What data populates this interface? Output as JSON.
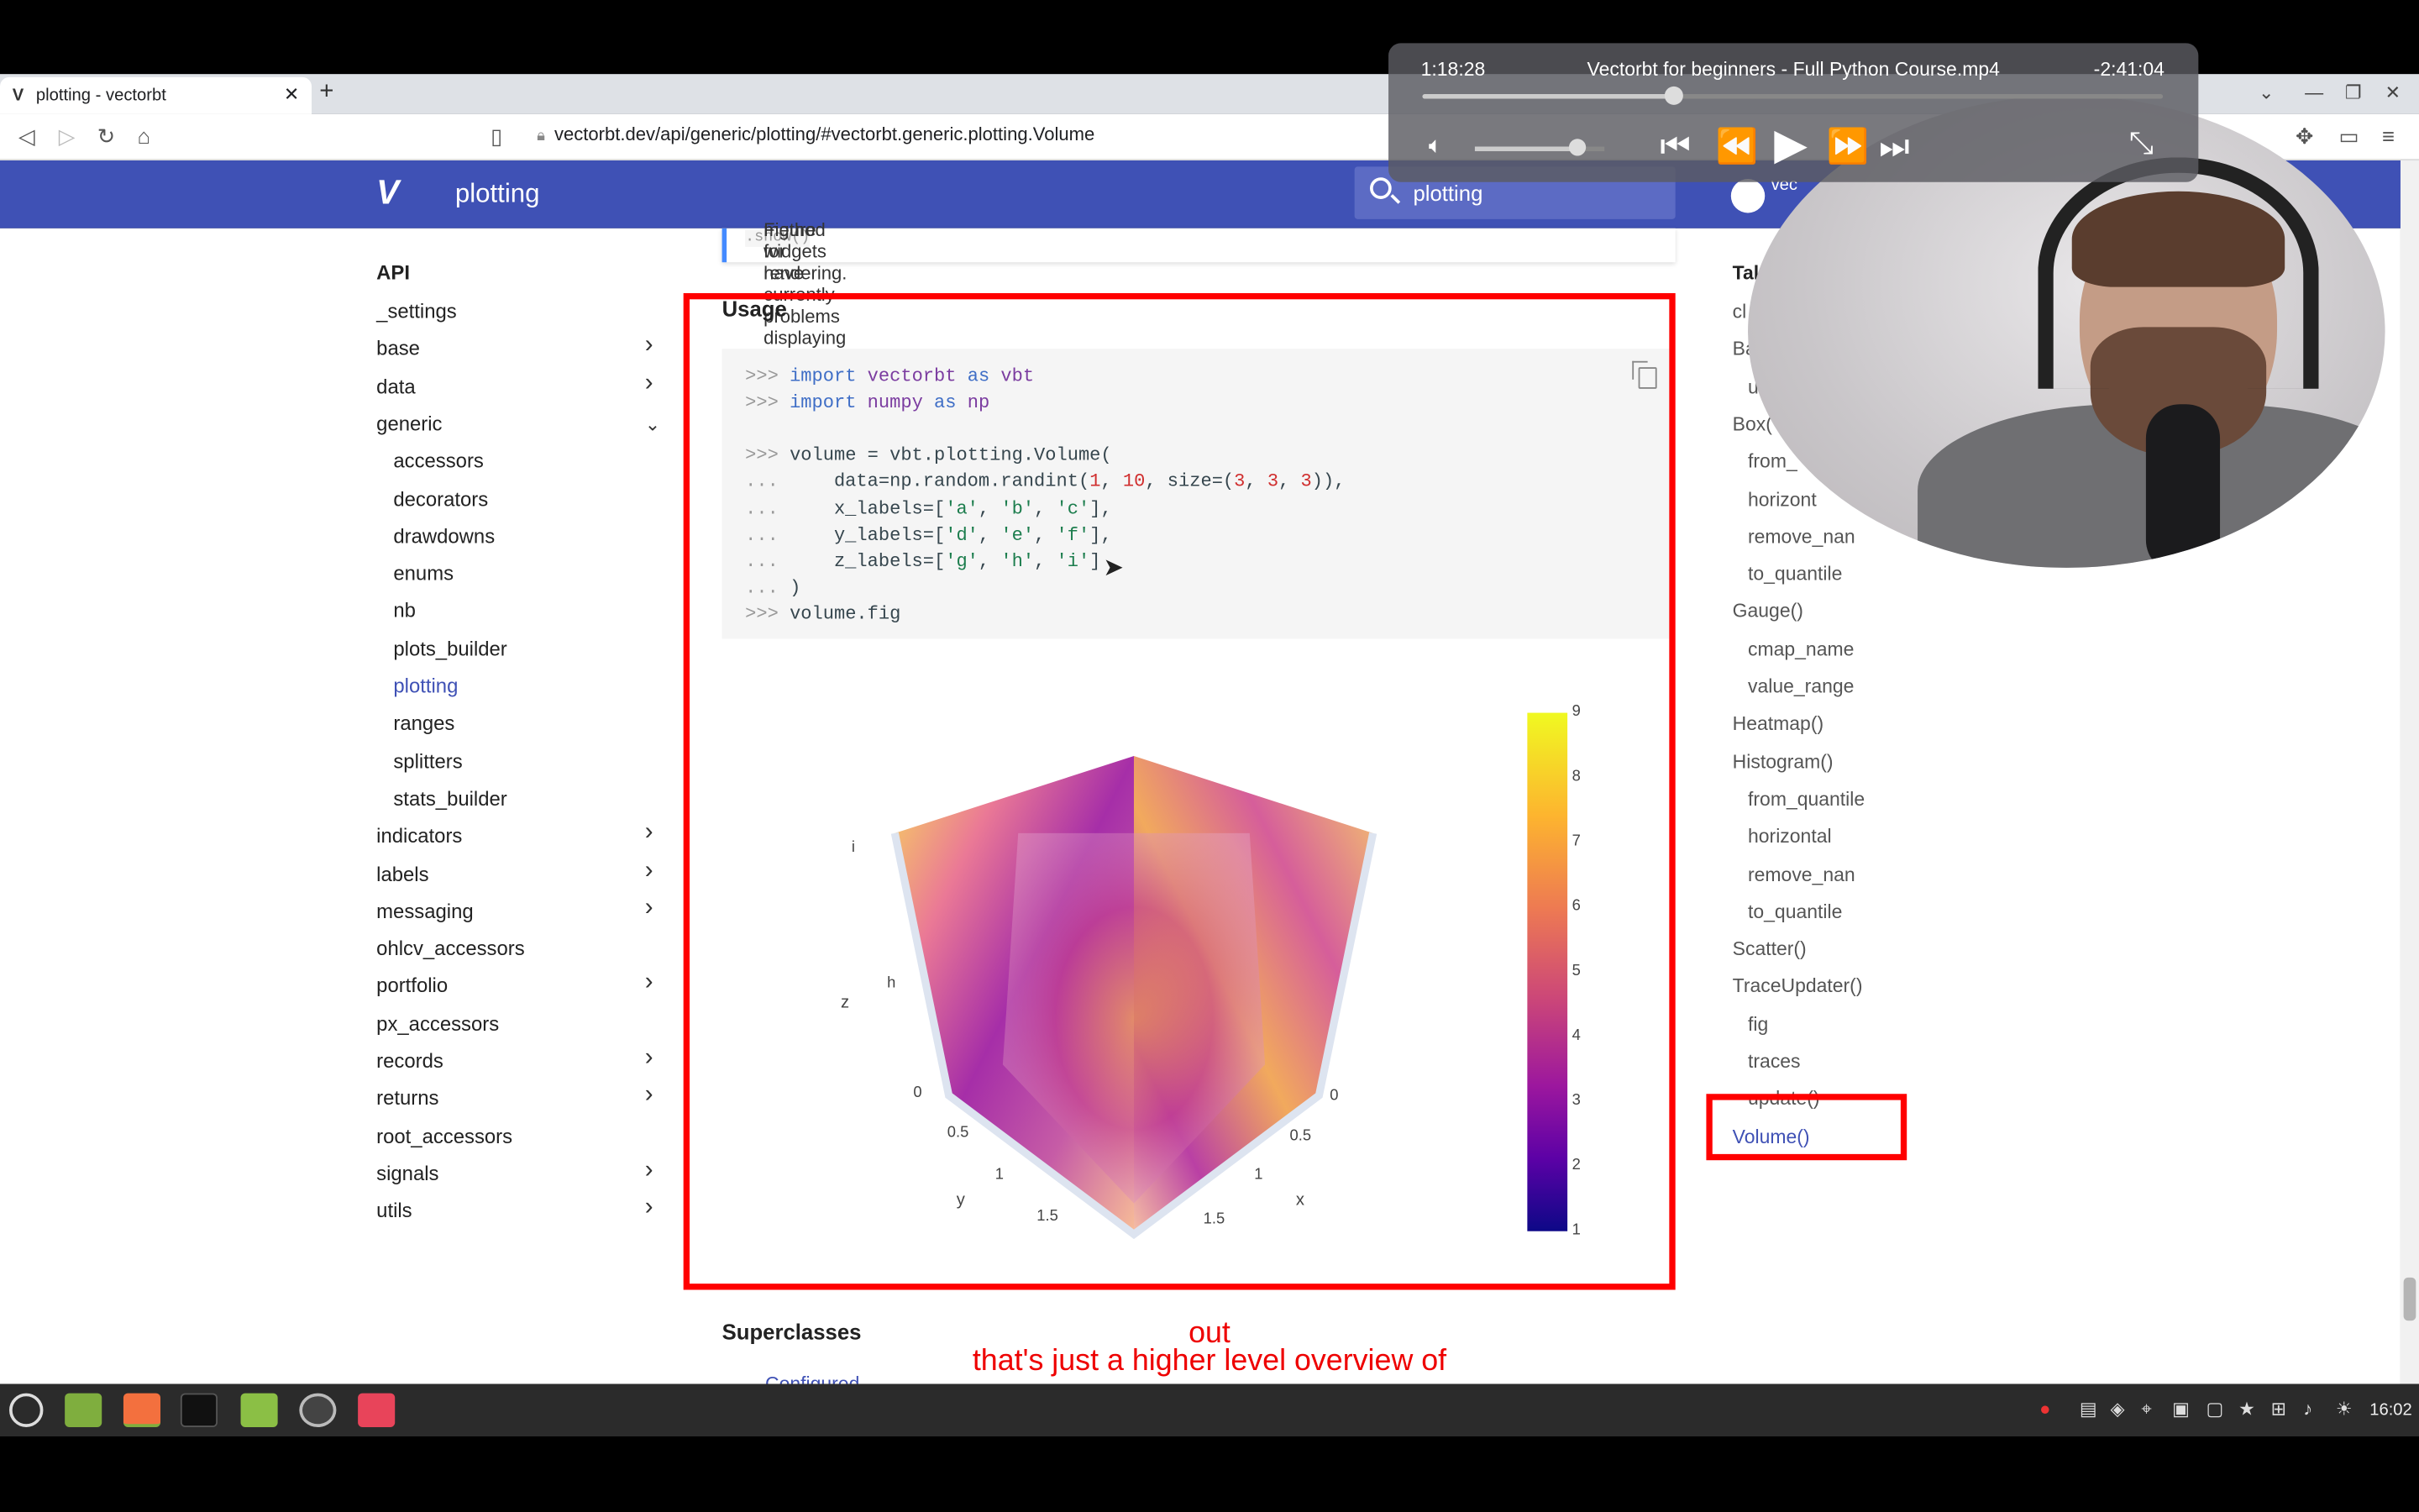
{
  "browser": {
    "tab_title": "plotting - vectorbt",
    "url": "vectorbt.dev/api/generic/plotting/#vectorbt.generic.plotting.Volume"
  },
  "site": {
    "title": "plotting",
    "search_value": "plotting",
    "repo_label": "vec"
  },
  "admonition": {
    "text_before": "Figure widgets have currently problems displaying NaNs. Use",
    "code": ".show()",
    "text_after": "method for rendering."
  },
  "nav": {
    "header": "API",
    "items": [
      {
        "label": "_settings",
        "chev": false,
        "sub": false
      },
      {
        "label": "base",
        "chev": true,
        "sub": false
      },
      {
        "label": "data",
        "chev": true,
        "sub": false
      },
      {
        "label": "generic",
        "chev": true,
        "open": true,
        "sub": false
      },
      {
        "label": "accessors",
        "sub": true
      },
      {
        "label": "decorators",
        "sub": true
      },
      {
        "label": "drawdowns",
        "sub": true
      },
      {
        "label": "enums",
        "sub": true
      },
      {
        "label": "nb",
        "sub": true
      },
      {
        "label": "plots_builder",
        "sub": true
      },
      {
        "label": "plotting",
        "sub": true,
        "active": true
      },
      {
        "label": "ranges",
        "sub": true
      },
      {
        "label": "splitters",
        "sub": true
      },
      {
        "label": "stats_builder",
        "sub": true
      },
      {
        "label": "indicators",
        "chev": true,
        "sub": false
      },
      {
        "label": "labels",
        "chev": true,
        "sub": false
      },
      {
        "label": "messaging",
        "chev": true,
        "sub": false
      },
      {
        "label": "ohlcv_accessors",
        "chev": false,
        "sub": false
      },
      {
        "label": "portfolio",
        "chev": true,
        "sub": false
      },
      {
        "label": "px_accessors",
        "chev": false,
        "sub": false
      },
      {
        "label": "records",
        "chev": true,
        "sub": false
      },
      {
        "label": "returns",
        "chev": true,
        "sub": false
      },
      {
        "label": "root_accessors",
        "chev": false,
        "sub": false
      },
      {
        "label": "signals",
        "chev": true,
        "sub": false
      },
      {
        "label": "utils",
        "chev": true,
        "sub": false
      }
    ]
  },
  "usage": {
    "heading": "Usage"
  },
  "code_lines": [
    [
      [
        "pr",
        ">>> "
      ],
      [
        "kw",
        "import"
      ],
      [
        "",
        ""
      ],
      [
        "nm",
        " vectorbt"
      ],
      [
        "",
        " "
      ],
      [
        "kw",
        "as"
      ],
      [
        "nm",
        " vbt"
      ]
    ],
    [
      [
        "pr",
        ">>> "
      ],
      [
        "kw",
        "import"
      ],
      [
        "nm",
        " numpy"
      ],
      [
        "",
        " "
      ],
      [
        "kw",
        "as"
      ],
      [
        "nm",
        " np"
      ]
    ],
    [
      [
        "",
        ""
      ]
    ],
    [
      [
        "pr",
        ">>> "
      ],
      [
        "",
        "volume = vbt.plotting.Volume("
      ]
    ],
    [
      [
        "pr",
        "...     "
      ],
      [
        "",
        "data=np.random.randint("
      ],
      [
        "nu",
        "1"
      ],
      [
        "",
        ", "
      ],
      [
        "nu",
        "10"
      ],
      [
        "",
        ", size=("
      ],
      [
        "nu",
        "3"
      ],
      [
        "",
        ", "
      ],
      [
        "nu",
        "3"
      ],
      [
        "",
        ", "
      ],
      [
        "nu",
        "3"
      ],
      [
        "",
        "))"
      ],
      [
        "",
        ","
      ]
    ],
    [
      [
        "pr",
        "...     "
      ],
      [
        "",
        "x_labels=["
      ],
      [
        "st",
        "'a'"
      ],
      [
        "",
        ", "
      ],
      [
        "st",
        "'b'"
      ],
      [
        "",
        ", "
      ],
      [
        "st",
        "'c'"
      ],
      [
        "",
        "],"
      ]
    ],
    [
      [
        "pr",
        "...     "
      ],
      [
        "",
        "y_labels=["
      ],
      [
        "st",
        "'d'"
      ],
      [
        "",
        ", "
      ],
      [
        "st",
        "'e'"
      ],
      [
        "",
        ", "
      ],
      [
        "st",
        "'f'"
      ],
      [
        "",
        "],"
      ]
    ],
    [
      [
        "pr",
        "...     "
      ],
      [
        "",
        "z_labels=["
      ],
      [
        "st",
        "'g'"
      ],
      [
        "",
        ", "
      ],
      [
        "st",
        "'h'"
      ],
      [
        "",
        ", "
      ],
      [
        "st",
        "'i'"
      ],
      [
        "",
        "]"
      ]
    ],
    [
      [
        "pr",
        "... "
      ],
      [
        "",
        ")"
      ]
    ],
    [
      [
        "pr",
        ">>> "
      ],
      [
        "",
        "volume.fig"
      ]
    ]
  ],
  "chart_data": {
    "type": "volume",
    "colorbar": {
      "ticks": [
        1,
        2,
        3,
        4,
        5,
        6,
        7,
        8,
        9
      ],
      "colormap": "plasma",
      "min": 1,
      "max": 9
    },
    "z_axis": {
      "title": "z",
      "tick_labels": [
        "h",
        "i"
      ]
    },
    "y_axis": {
      "title": "y",
      "tick_labels": [
        "0",
        "0.5",
        "1",
        "1.5"
      ]
    },
    "x_axis": {
      "title": "x",
      "tick_labels": [
        "0",
        "0.5",
        "1",
        "1.5"
      ]
    }
  },
  "superclasses": {
    "heading": "Superclasses",
    "first": "Configured"
  },
  "toc": {
    "header": "Tal",
    "items": [
      {
        "label": "cl",
        "sub": false
      },
      {
        "label": "Ba",
        "sub": false
      },
      {
        "label": "u",
        "sub": true
      },
      {
        "label": "Box(",
        "sub": false
      },
      {
        "label": "from_",
        "sub": true
      },
      {
        "label": "horizont",
        "sub": true
      },
      {
        "label": "remove_nan",
        "sub": true
      },
      {
        "label": "to_quantile",
        "sub": true
      },
      {
        "label": "Gauge()",
        "sub": false
      },
      {
        "label": "cmap_name",
        "sub": true
      },
      {
        "label": "value_range",
        "sub": true
      },
      {
        "label": "Heatmap()",
        "sub": false
      },
      {
        "label": "Histogram()",
        "sub": false
      },
      {
        "label": "from_quantile",
        "sub": true
      },
      {
        "label": "horizontal",
        "sub": true
      },
      {
        "label": "remove_nan",
        "sub": true
      },
      {
        "label": "to_quantile",
        "sub": true
      },
      {
        "label": "Scatter()",
        "sub": false
      },
      {
        "label": "TraceUpdater()",
        "sub": false
      },
      {
        "label": "fig",
        "sub": true
      },
      {
        "label": "traces",
        "sub": true
      },
      {
        "label": "update()",
        "sub": true
      },
      {
        "label": "Volume()",
        "sub": false,
        "active": true
      }
    ]
  },
  "player": {
    "elapsed": "1:18:28",
    "title": "Vectorbt for beginners - Full Python Course.mp4",
    "remaining": "-2:41:04",
    "progress": 0.34,
    "volume": 0.8
  },
  "captions": {
    "line1": "out",
    "line2": "that's just a higher level overview of"
  },
  "taskbar": {
    "clock": "16:02"
  }
}
